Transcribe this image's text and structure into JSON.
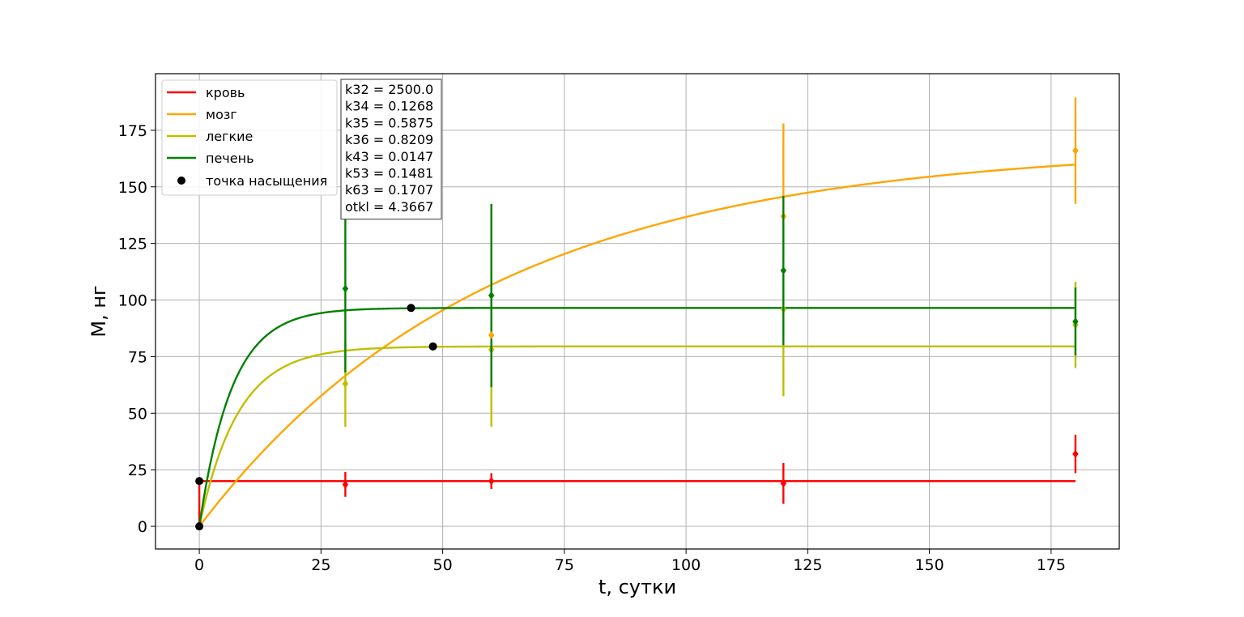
{
  "chart_data": {
    "type": "line",
    "xlabel": "t, сутки",
    "ylabel": "M, нг",
    "xlim": [
      -9,
      189
    ],
    "ylim": [
      -10,
      200
    ],
    "xticks": [
      "0",
      "25",
      "50",
      "75",
      "100",
      "125",
      "150",
      "175"
    ],
    "yticks": [
      "0",
      "25",
      "50",
      "75",
      "100",
      "125",
      "150",
      "175"
    ],
    "grid": true,
    "legend_position": "top-left",
    "legend": [
      {
        "label": "кровь",
        "color": "#ff0000",
        "kind": "line"
      },
      {
        "label": "мозг",
        "color": "#ffa500",
        "kind": "line"
      },
      {
        "label": "легкие",
        "color": "#bfbf00",
        "kind": "line"
      },
      {
        "label": "печень",
        "color": "#008000",
        "kind": "line"
      },
      {
        "label": "точка насыщения",
        "color": "#000000",
        "kind": "marker"
      }
    ],
    "params": [
      "k32 = 2500.0",
      "k34 = 0.1268",
      "k35 = 0.5875",
      "k36 = 0.8209",
      "k43 = 0.0147",
      "k53 = 0.1481",
      "k63 = 0.1707",
      "otkl = 4.3667"
    ],
    "curves": [
      {
        "name": "кровь",
        "color": "#ff0000",
        "model": "step",
        "level": 20,
        "x_end": 180
      },
      {
        "name": "мозг",
        "color": "#ffa500",
        "model": "saturation",
        "plateau": 168,
        "rate": 0.0168,
        "x_end": 180
      },
      {
        "name": "легкие",
        "color": "#bfbf00",
        "model": "saturation",
        "plateau": 79.5,
        "rate": 0.125,
        "x_end": 180
      },
      {
        "name": "печень",
        "color": "#008000",
        "model": "saturation",
        "plateau": 96.5,
        "rate": 0.15,
        "x_end": 180
      }
    ],
    "measurements": [
      {
        "name": "кровь",
        "color": "#ff0000",
        "points": [
          {
            "x": 30,
            "y": 18.5,
            "err": 5.5
          },
          {
            "x": 60,
            "y": 20,
            "err": 3.5
          },
          {
            "x": 120,
            "y": 19,
            "err": 9
          },
          {
            "x": 180,
            "y": 32,
            "err": 8.5
          }
        ]
      },
      {
        "name": "мозг",
        "color": "#ffa500",
        "points": [
          {
            "x": 120,
            "y": 137,
            "err": 41
          },
          {
            "x": 180,
            "y": 166,
            "err": 23.5
          }
        ]
      },
      {
        "name": "легкие",
        "color": "#bfbf00",
        "points": [
          {
            "x": 30,
            "y": 63,
            "err": 19
          },
          {
            "x": 60,
            "y": 78,
            "err": 34
          },
          {
            "x": 120,
            "y": 96,
            "err": 38.5
          },
          {
            "x": 180,
            "y": 89,
            "err": 19
          }
        ]
      },
      {
        "name": "печень",
        "color": "#008000",
        "points": [
          {
            "x": 30,
            "y": 105,
            "err": 37
          },
          {
            "x": 60,
            "y": 102,
            "err": 40.5
          },
          {
            "x": 120,
            "y": 113,
            "err": 33
          },
          {
            "x": 180,
            "y": 90.5,
            "err": 15
          }
        ]
      },
      {
        "name": "мозг (60)",
        "color": "#ffa500",
        "points": [
          {
            "x": 60,
            "y": 84.5,
            "err": 0
          }
        ]
      }
    ],
    "saturation_points": [
      {
        "x": 0,
        "y": 20
      },
      {
        "x": 0,
        "y": 0
      },
      {
        "x": 43.5,
        "y": 96.5
      },
      {
        "x": 48,
        "y": 79.5
      }
    ]
  }
}
